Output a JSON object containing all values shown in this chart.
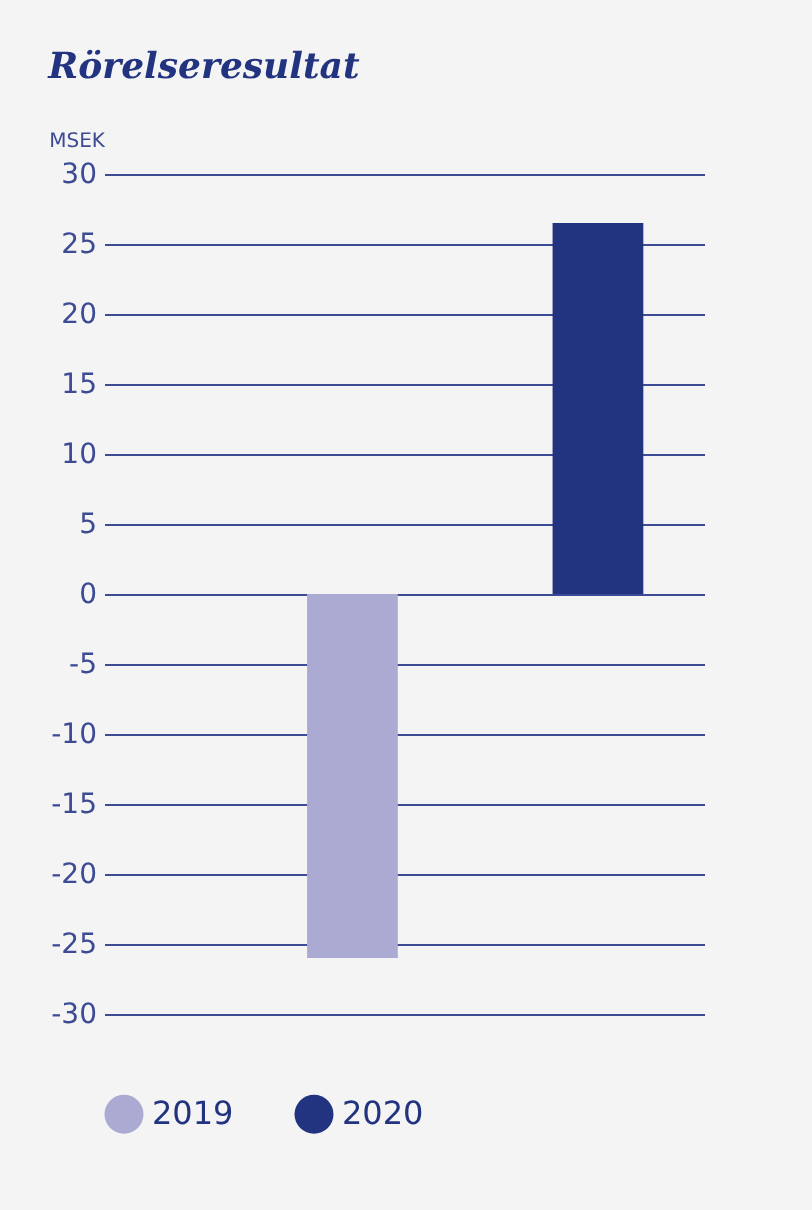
{
  "chart_data": {
    "type": "bar",
    "title": "Rörelseresultat",
    "ylabel": "MSEK",
    "categories": [
      null
    ],
    "series": [
      {
        "name": "2019",
        "color": "#aaaad2",
        "values": [
          -26
        ]
      },
      {
        "name": "2020",
        "color": "#22337f",
        "values": [
          26.5
        ]
      }
    ],
    "ylim": [
      -30,
      30
    ],
    "yticks": [
      -30,
      -25,
      -20,
      -15,
      -10,
      -5,
      0,
      5,
      10,
      15,
      20,
      25,
      30
    ],
    "grid": "y",
    "legend": "bottom left",
    "tick_labels": "y"
  }
}
